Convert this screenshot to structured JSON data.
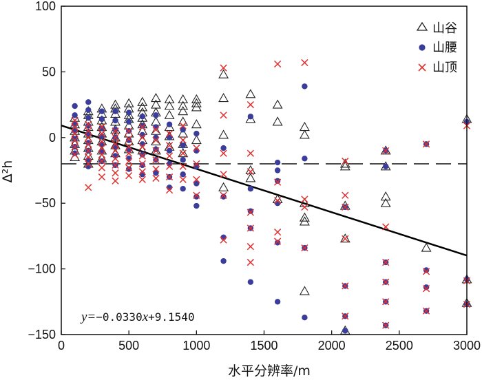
{
  "chart_data": {
    "type": "scatter",
    "xlabel": "水平分辨率/m",
    "ylabel": "Δ²h",
    "xlim": [
      0,
      3000
    ],
    "ylim": [
      -150,
      100
    ],
    "xticks": [
      0,
      500,
      1000,
      1500,
      2000,
      2500,
      3000
    ],
    "yticks": [
      100,
      50,
      0,
      -50,
      -100,
      -150
    ],
    "xtick_labels": [
      "0",
      "500",
      "1000",
      "1500",
      "2000",
      "2500",
      "3000"
    ],
    "ytick_labels": [
      "100",
      "50",
      "0",
      "−50",
      "−100",
      "−150"
    ],
    "legend": {
      "position": "top-right",
      "entries": [
        "山谷",
        "山腰",
        "山顶"
      ]
    },
    "regression": {
      "slope": -0.033,
      "intercept": 9.154,
      "x_range": [
        0,
        3000
      ],
      "label_prefix": "y=",
      "label_body": "−0.0330",
      "label_var": "x",
      "label_tail": "+9.1540"
    },
    "reference_line": {
      "y": -20,
      "style": "dashed"
    },
    "series": [
      {
        "name": "山谷",
        "marker": "triangle-open",
        "color": "#222222",
        "points": [
          [
            100,
            15
          ],
          [
            100,
            10
          ],
          [
            100,
            5
          ],
          [
            100,
            0
          ],
          [
            100,
            -5
          ],
          [
            100,
            -10
          ],
          [
            100,
            -15
          ],
          [
            200,
            20
          ],
          [
            200,
            17
          ],
          [
            200,
            12
          ],
          [
            200,
            8
          ],
          [
            200,
            3
          ],
          [
            200,
            -2
          ],
          [
            200,
            -8
          ],
          [
            200,
            -14
          ],
          [
            200,
            -20
          ],
          [
            300,
            22
          ],
          [
            300,
            18
          ],
          [
            300,
            13
          ],
          [
            300,
            8
          ],
          [
            300,
            3
          ],
          [
            300,
            -3
          ],
          [
            300,
            -10
          ],
          [
            300,
            -16
          ],
          [
            400,
            25
          ],
          [
            400,
            22
          ],
          [
            400,
            18
          ],
          [
            400,
            12
          ],
          [
            400,
            6
          ],
          [
            400,
            0
          ],
          [
            400,
            -6
          ],
          [
            400,
            -12
          ],
          [
            500,
            26
          ],
          [
            500,
            22
          ],
          [
            500,
            17
          ],
          [
            500,
            14
          ],
          [
            500,
            9
          ],
          [
            500,
            3
          ],
          [
            500,
            -3
          ],
          [
            500,
            -9
          ],
          [
            600,
            27
          ],
          [
            600,
            23
          ],
          [
            600,
            19
          ],
          [
            600,
            15
          ],
          [
            600,
            10
          ],
          [
            600,
            5
          ],
          [
            600,
            -2
          ],
          [
            600,
            -10
          ],
          [
            700,
            30
          ],
          [
            700,
            25
          ],
          [
            700,
            19
          ],
          [
            700,
            12
          ],
          [
            700,
            5
          ],
          [
            700,
            -3
          ],
          [
            700,
            -10
          ],
          [
            800,
            29
          ],
          [
            800,
            24
          ],
          [
            800,
            17
          ],
          [
            800,
            8
          ],
          [
            800,
            1
          ],
          [
            800,
            -7
          ],
          [
            900,
            29
          ],
          [
            900,
            24
          ],
          [
            900,
            20
          ],
          [
            900,
            12
          ],
          [
            900,
            3
          ],
          [
            900,
            -5
          ],
          [
            900,
            -12
          ],
          [
            1000,
            29
          ],
          [
            1000,
            26
          ],
          [
            1000,
            23
          ],
          [
            1000,
            10
          ],
          [
            1000,
            -2
          ],
          [
            1200,
            48
          ],
          [
            1200,
            30
          ],
          [
            1200,
            2
          ],
          [
            1200,
            -38
          ],
          [
            1400,
            33
          ],
          [
            1400,
            14
          ],
          [
            1400,
            -25
          ],
          [
            1400,
            -31
          ],
          [
            1600,
            25
          ],
          [
            1600,
            12
          ],
          [
            1600,
            -47
          ],
          [
            1800,
            8
          ],
          [
            1800,
            2
          ],
          [
            1800,
            -50
          ],
          [
            1800,
            -61
          ],
          [
            1800,
            -64
          ],
          [
            1800,
            -117
          ],
          [
            2100,
            -20
          ],
          [
            2100,
            -22
          ],
          [
            2100,
            -52
          ],
          [
            2100,
            -77
          ],
          [
            2100,
            -147
          ],
          [
            2400,
            -45
          ],
          [
            2400,
            -50
          ],
          [
            2400,
            -10
          ],
          [
            2400,
            -22
          ],
          [
            2700,
            -84
          ],
          [
            3000,
            14
          ],
          [
            3000,
            -108
          ],
          [
            3000,
            -126
          ]
        ]
      },
      {
        "name": "山腰",
        "marker": "circle-filled",
        "color": "#3a3d9a",
        "points": [
          [
            100,
            24
          ],
          [
            100,
            17
          ],
          [
            100,
            10
          ],
          [
            100,
            5
          ],
          [
            100,
            -1
          ],
          [
            100,
            -7
          ],
          [
            100,
            -12
          ],
          [
            200,
            27
          ],
          [
            200,
            21
          ],
          [
            200,
            15
          ],
          [
            200,
            9
          ],
          [
            200,
            3
          ],
          [
            200,
            -4
          ],
          [
            200,
            -10
          ],
          [
            200,
            -17
          ],
          [
            200,
            -22
          ],
          [
            300,
            20
          ],
          [
            300,
            14
          ],
          [
            300,
            7
          ],
          [
            300,
            1
          ],
          [
            300,
            -5
          ],
          [
            300,
            -11
          ],
          [
            300,
            -18
          ],
          [
            400,
            20
          ],
          [
            400,
            13
          ],
          [
            400,
            6
          ],
          [
            400,
            0
          ],
          [
            400,
            -7
          ],
          [
            400,
            -14
          ],
          [
            400,
            -21
          ],
          [
            500,
            19
          ],
          [
            500,
            12
          ],
          [
            500,
            5
          ],
          [
            500,
            -2
          ],
          [
            500,
            -9
          ],
          [
            500,
            -16
          ],
          [
            500,
            -24
          ],
          [
            600,
            16
          ],
          [
            600,
            9
          ],
          [
            600,
            2
          ],
          [
            600,
            -5
          ],
          [
            600,
            -13
          ],
          [
            600,
            -21
          ],
          [
            600,
            -28
          ],
          [
            700,
            17
          ],
          [
            700,
            8
          ],
          [
            700,
            0
          ],
          [
            700,
            -9
          ],
          [
            700,
            -17
          ],
          [
            700,
            -27
          ],
          [
            800,
            10
          ],
          [
            800,
            0
          ],
          [
            800,
            -10
          ],
          [
            800,
            -20
          ],
          [
            800,
            -30
          ],
          [
            800,
            -38
          ],
          [
            900,
            6
          ],
          [
            900,
            -6
          ],
          [
            900,
            -17
          ],
          [
            900,
            -28
          ],
          [
            900,
            -39
          ],
          [
            1000,
            3
          ],
          [
            1000,
            -10
          ],
          [
            1000,
            -22
          ],
          [
            1000,
            -35
          ],
          [
            1000,
            -45
          ],
          [
            1000,
            -52
          ],
          [
            1200,
            -8
          ],
          [
            1200,
            -45
          ],
          [
            1200,
            -76
          ],
          [
            1200,
            -94
          ],
          [
            1400,
            16
          ],
          [
            1400,
            -39
          ],
          [
            1400,
            -56
          ],
          [
            1400,
            -69
          ],
          [
            1400,
            -110
          ],
          [
            1600,
            -19
          ],
          [
            1600,
            -25
          ],
          [
            1600,
            -33
          ],
          [
            1600,
            -50
          ],
          [
            1600,
            -80
          ],
          [
            1600,
            -125
          ],
          [
            1800,
            39
          ],
          [
            1800,
            -16
          ],
          [
            1800,
            -84
          ],
          [
            1800,
            -137
          ],
          [
            2100,
            -53
          ],
          [
            2100,
            -113
          ],
          [
            2100,
            -136
          ],
          [
            2100,
            -147
          ],
          [
            2400,
            -10
          ],
          [
            2400,
            -22
          ],
          [
            2400,
            -95
          ],
          [
            2400,
            -110
          ],
          [
            2400,
            -125
          ],
          [
            2400,
            -143
          ],
          [
            2700,
            -5
          ],
          [
            2700,
            -101
          ],
          [
            2700,
            -114
          ],
          [
            2700,
            -132
          ],
          [
            3000,
            12
          ],
          [
            3000,
            -108
          ],
          [
            3000,
            -127
          ]
        ]
      },
      {
        "name": "山顶",
        "marker": "x",
        "color": "#e03030",
        "points": [
          [
            100,
            13
          ],
          [
            100,
            8
          ],
          [
            100,
            3
          ],
          [
            100,
            -2
          ],
          [
            100,
            -7
          ],
          [
            100,
            -13
          ],
          [
            200,
            10
          ],
          [
            200,
            5
          ],
          [
            200,
            0
          ],
          [
            200,
            -5
          ],
          [
            200,
            -10
          ],
          [
            200,
            -15
          ],
          [
            200,
            -20
          ],
          [
            200,
            -38
          ],
          [
            300,
            8
          ],
          [
            300,
            3
          ],
          [
            300,
            -3
          ],
          [
            300,
            -8
          ],
          [
            300,
            -13
          ],
          [
            300,
            -18
          ],
          [
            300,
            -23
          ],
          [
            300,
            -30
          ],
          [
            400,
            5
          ],
          [
            400,
            0
          ],
          [
            400,
            -5
          ],
          [
            400,
            -10
          ],
          [
            400,
            -16
          ],
          [
            400,
            -21
          ],
          [
            400,
            -27
          ],
          [
            400,
            -33
          ],
          [
            500,
            5
          ],
          [
            500,
            -1
          ],
          [
            500,
            -7
          ],
          [
            500,
            -12
          ],
          [
            500,
            -18
          ],
          [
            500,
            -23
          ],
          [
            500,
            -29
          ],
          [
            600,
            8
          ],
          [
            600,
            0
          ],
          [
            600,
            -7
          ],
          [
            600,
            -14
          ],
          [
            600,
            -20
          ],
          [
            600,
            -26
          ],
          [
            600,
            -32
          ],
          [
            700,
            6
          ],
          [
            700,
            -2
          ],
          [
            700,
            -10
          ],
          [
            700,
            -17
          ],
          [
            700,
            -24
          ],
          [
            700,
            -31
          ],
          [
            800,
            3
          ],
          [
            800,
            -6
          ],
          [
            800,
            -14
          ],
          [
            800,
            -22
          ],
          [
            800,
            -30
          ],
          [
            800,
            -40
          ],
          [
            900,
            9
          ],
          [
            900,
            -2
          ],
          [
            900,
            -12
          ],
          [
            900,
            -22
          ],
          [
            900,
            -32
          ],
          [
            1000,
            -8
          ],
          [
            1000,
            -20
          ],
          [
            1000,
            -32
          ],
          [
            1000,
            -44
          ],
          [
            1200,
            53
          ],
          [
            1200,
            17
          ],
          [
            1200,
            -12
          ],
          [
            1200,
            -28
          ],
          [
            1200,
            -44
          ],
          [
            1200,
            -78
          ],
          [
            1400,
            25
          ],
          [
            1400,
            -12
          ],
          [
            1400,
            -26
          ],
          [
            1400,
            -57
          ],
          [
            1400,
            -69
          ],
          [
            1400,
            -83
          ],
          [
            1400,
            -95
          ],
          [
            1600,
            56
          ],
          [
            1600,
            -34
          ],
          [
            1600,
            -48
          ],
          [
            1600,
            -72
          ],
          [
            1600,
            -79
          ],
          [
            1800,
            57
          ],
          [
            1800,
            -47
          ],
          [
            1800,
            -53
          ],
          [
            1800,
            -84
          ],
          [
            2100,
            -18
          ],
          [
            2100,
            -44
          ],
          [
            2100,
            -53
          ],
          [
            2100,
            -77
          ],
          [
            2100,
            -113
          ],
          [
            2100,
            -136
          ],
          [
            2400,
            -10
          ],
          [
            2400,
            -68
          ],
          [
            2400,
            -95
          ],
          [
            2400,
            -110
          ],
          [
            2400,
            -125
          ],
          [
            2400,
            -143
          ],
          [
            2700,
            -5
          ],
          [
            2700,
            -102
          ],
          [
            2700,
            -115
          ],
          [
            2700,
            -132
          ],
          [
            3000,
            9
          ],
          [
            3000,
            -109
          ],
          [
            3000,
            -127
          ]
        ]
      }
    ]
  }
}
